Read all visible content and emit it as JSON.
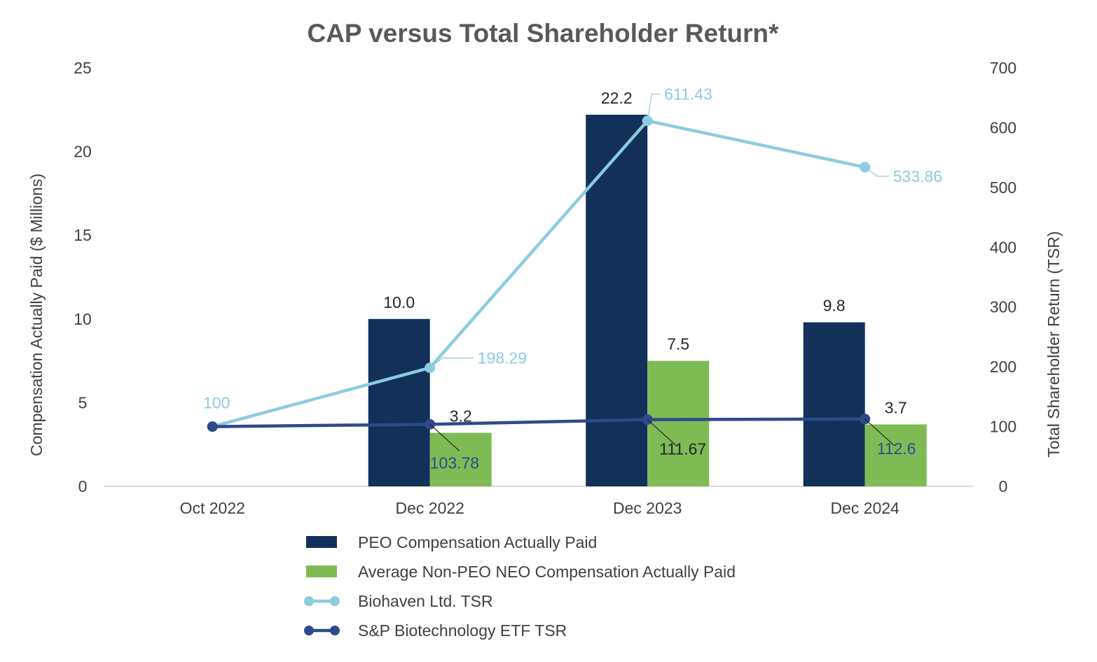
{
  "chart_data": {
    "type": "bar",
    "title": "CAP versus Total Shareholder Return*",
    "categories": [
      "Oct 2022",
      "Dec 2022",
      "Dec 2023",
      "Dec 2024"
    ],
    "ylabel_left": "Compensation Actually Paid ($ Millions)",
    "ylabel_right": "Total Shareholder Return (TSR)",
    "ylim_left": [
      0,
      25
    ],
    "yticks_left": [
      "0",
      "5",
      "10",
      "15",
      "20",
      "25"
    ],
    "ylim_right": [
      0,
      700
    ],
    "yticks_right": [
      "0",
      "100",
      "200",
      "300",
      "400",
      "500",
      "600",
      "700"
    ],
    "series": [
      {
        "name": "PEO Compensation Actually Paid",
        "kind": "bar",
        "axis": "left",
        "color": "#12305a",
        "values": [
          null,
          10.0,
          22.2,
          9.8
        ],
        "labels": [
          "",
          "10.0",
          "22.2",
          "9.8"
        ]
      },
      {
        "name": "Average Non-PEO NEO Compensation Actually Paid",
        "kind": "bar",
        "axis": "left",
        "color": "#7fbb55",
        "values": [
          null,
          3.2,
          7.5,
          3.7
        ],
        "labels": [
          "",
          "3.2",
          "7.5",
          "3.7"
        ]
      },
      {
        "name": "Biohaven Ltd. TSR",
        "kind": "line",
        "axis": "right",
        "color": "#8ccbe0",
        "values": [
          100,
          198.29,
          611.43,
          533.86
        ],
        "labels": [
          "100",
          "198.29",
          "611.43",
          "533.86"
        ]
      },
      {
        "name": "S&P Biotechnology ETF TSR",
        "kind": "line",
        "axis": "right",
        "color": "#2e4a8a",
        "values": [
          100,
          103.78,
          111.67,
          112.6
        ],
        "labels": [
          "",
          "103.78",
          "111.67",
          "112.6"
        ]
      }
    ],
    "legend_position": "bottom"
  }
}
